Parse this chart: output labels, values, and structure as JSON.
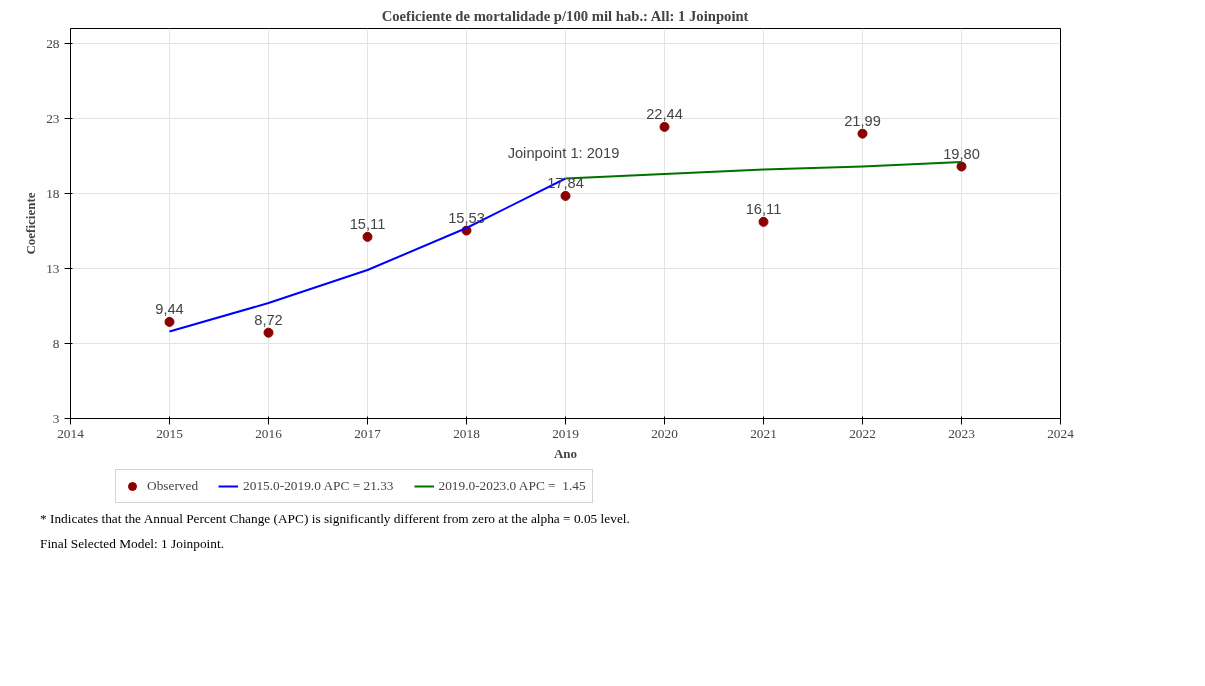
{
  "chart_data": {
    "type": "line",
    "title": "Coeficiente de mortalidade p/100 mil hab.: All: 1 Joinpoint",
    "xlabel": "Ano",
    "ylabel": "Coeficiente",
    "xlim": [
      2014,
      2024
    ],
    "xticks": [
      2014,
      2015,
      2016,
      2017,
      2018,
      2019,
      2020,
      2021,
      2022,
      2023,
      2024
    ],
    "ylim": [
      3,
      29
    ],
    "yticks": [
      3,
      8,
      13,
      18,
      23,
      28
    ],
    "grid": true,
    "legend": "bottom",
    "series": [
      {
        "name": "Observed",
        "type": "scatter",
        "marker": "circle",
        "color": "#8b0000",
        "x": [
          2015,
          2016,
          2017,
          2018,
          2019,
          2020,
          2021,
          2022,
          2023
        ],
        "values": [
          9.44,
          8.72,
          15.11,
          15.53,
          17.84,
          22.44,
          16.11,
          21.99,
          19.8
        ],
        "value_labels": [
          "9,44",
          "8,72",
          "15,11",
          "15,53",
          "17,84",
          "22,44",
          "16,11",
          "21,99",
          "19,80"
        ]
      },
      {
        "name": "2015.0-2019.0 APC = 21.33",
        "color": "#0000ff",
        "x": [
          2015,
          2016,
          2017,
          2018,
          2019
        ],
        "values": [
          8.8,
          10.7,
          12.9,
          15.7,
          19.0
        ]
      },
      {
        "name": "2019.0-2023.0 APC =  1.45",
        "color": "#007000",
        "x": [
          2019,
          2020,
          2021,
          2022,
          2023
        ],
        "values": [
          19.0,
          19.3,
          19.6,
          19.8,
          20.1
        ]
      }
    ],
    "annotations": [
      {
        "text": "Joinpoint 1:  2019",
        "x": 2019,
        "y": 19.0
      },
      "* Indicates that the Annual Percent Change (APC) is significantly different from zero at the alpha = 0.05 level.",
      "Final Selected Model: 1 Joinpoint."
    ]
  }
}
